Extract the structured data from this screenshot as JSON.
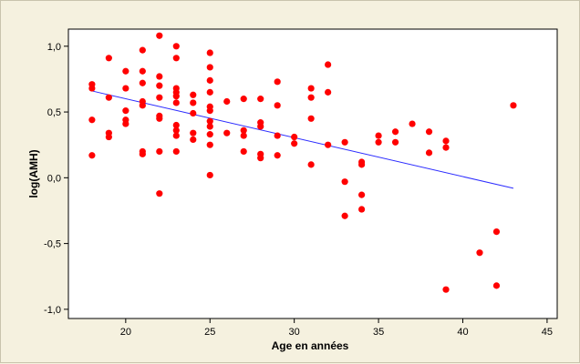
{
  "chart_data": {
    "type": "scatter",
    "title": "",
    "xlabel": "Age en années",
    "ylabel": "log(AMH)",
    "xlim": [
      16.6,
      45.6
    ],
    "ylim": [
      -1.07,
      1.13
    ],
    "x_ticks": [
      20,
      25,
      30,
      35,
      40,
      45
    ],
    "x_tick_labels": [
      "20",
      "25",
      "30",
      "35",
      "40",
      "45"
    ],
    "y_ticks": [
      -1.0,
      -0.5,
      0.0,
      0.5,
      1.0
    ],
    "y_tick_labels": [
      "-1,0",
      "-0,5",
      "0,0",
      "0,5",
      "1,0"
    ],
    "grid": false,
    "colors": {
      "points": "#ff0000",
      "fit_line": "#2b2bff",
      "plot_bg": "#ffffff",
      "figure_bg": "#f5f1df"
    },
    "series": [
      {
        "values": [
          [
            18,
            0.71
          ],
          [
            18,
            0.68
          ],
          [
            18,
            0.44
          ],
          [
            18,
            0.17
          ],
          [
            19,
            0.91
          ],
          [
            19,
            0.61
          ],
          [
            19,
            0.34
          ],
          [
            19,
            0.31
          ],
          [
            20,
            0.81
          ],
          [
            20,
            0.68
          ],
          [
            20,
            0.51
          ],
          [
            20,
            0.44
          ],
          [
            20,
            0.41
          ],
          [
            21,
            0.97
          ],
          [
            21,
            0.81
          ],
          [
            21,
            0.72
          ],
          [
            21,
            0.58
          ],
          [
            21,
            0.55
          ],
          [
            21,
            0.2
          ],
          [
            21,
            0.18
          ],
          [
            22,
            1.08
          ],
          [
            22,
            0.77
          ],
          [
            22,
            0.7
          ],
          [
            22,
            0.61
          ],
          [
            22,
            0.47
          ],
          [
            22,
            0.45
          ],
          [
            22,
            0.2
          ],
          [
            22,
            -0.12
          ],
          [
            23,
            1.0
          ],
          [
            23,
            0.91
          ],
          [
            23,
            0.68
          ],
          [
            23,
            0.65
          ],
          [
            23,
            0.62
          ],
          [
            23,
            0.57
          ],
          [
            23,
            0.4
          ],
          [
            23,
            0.36
          ],
          [
            23,
            0.32
          ],
          [
            23,
            0.2
          ],
          [
            24,
            0.63
          ],
          [
            24,
            0.57
          ],
          [
            24,
            0.49
          ],
          [
            24,
            0.34
          ],
          [
            24,
            0.29
          ],
          [
            25,
            0.95
          ],
          [
            25,
            0.84
          ],
          [
            25,
            0.74
          ],
          [
            25,
            0.65
          ],
          [
            25,
            0.54
          ],
          [
            25,
            0.51
          ],
          [
            25,
            0.43
          ],
          [
            25,
            0.39
          ],
          [
            25,
            0.33
          ],
          [
            25,
            0.25
          ],
          [
            25,
            0.02
          ],
          [
            26,
            0.58
          ],
          [
            26,
            0.34
          ],
          [
            27,
            0.6
          ],
          [
            27,
            0.36
          ],
          [
            27,
            0.32
          ],
          [
            27,
            0.2
          ],
          [
            28,
            0.6
          ],
          [
            28,
            0.42
          ],
          [
            28,
            0.39
          ],
          [
            28,
            0.18
          ],
          [
            28,
            0.15
          ],
          [
            29,
            0.73
          ],
          [
            29,
            0.55
          ],
          [
            29,
            0.32
          ],
          [
            29,
            0.17
          ],
          [
            30,
            0.31
          ],
          [
            30,
            0.26
          ],
          [
            31,
            0.68
          ],
          [
            31,
            0.61
          ],
          [
            31,
            0.45
          ],
          [
            31,
            0.1
          ],
          [
            32,
            0.86
          ],
          [
            32,
            0.65
          ],
          [
            32,
            0.25
          ],
          [
            33,
            0.27
          ],
          [
            33,
            -0.03
          ],
          [
            33,
            -0.29
          ],
          [
            34,
            0.12
          ],
          [
            34,
            0.1
          ],
          [
            34,
            -0.13
          ],
          [
            34,
            -0.24
          ],
          [
            35,
            0.32
          ],
          [
            35,
            0.27
          ],
          [
            36,
            0.35
          ],
          [
            36,
            0.27
          ],
          [
            37,
            0.41
          ],
          [
            38,
            0.35
          ],
          [
            38,
            0.19
          ],
          [
            39,
            0.28
          ],
          [
            39,
            0.23
          ],
          [
            39,
            -0.85
          ],
          [
            41,
            -0.57
          ],
          [
            42,
            -0.41
          ],
          [
            42,
            -0.82
          ],
          [
            43,
            0.55
          ]
        ]
      }
    ],
    "fit_line": {
      "x": [
        18,
        43
      ],
      "y": [
        0.66,
        -0.08
      ]
    }
  }
}
